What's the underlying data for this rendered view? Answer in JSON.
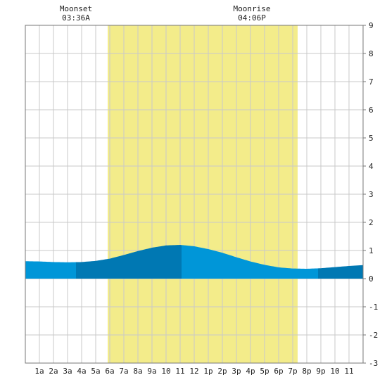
{
  "chart_data": {
    "type": "area",
    "title": "",
    "xlabel": "",
    "ylabel": "",
    "ylim": [
      -3,
      9
    ],
    "x_range_hours": [
      0,
      24
    ],
    "y_ticks": [
      -3,
      -2,
      -1,
      0,
      1,
      2,
      3,
      4,
      5,
      6,
      7,
      8,
      9
    ],
    "x_tick_labels": [
      "1a",
      "2a",
      "3a",
      "4a",
      "5a",
      "6a",
      "7a",
      "8a",
      "9a",
      "10",
      "11",
      "12",
      "1p",
      "2p",
      "3p",
      "4p",
      "5p",
      "6p",
      "7p",
      "8p",
      "9p",
      "10",
      "11"
    ],
    "daylight": {
      "start_hour": 5.85,
      "end_hour": 19.35
    },
    "moon_events": [
      {
        "label": "Moonset",
        "time": "03:36A",
        "hour": 3.6
      },
      {
        "label": "Moonrise",
        "time": "04:06P",
        "hour": 16.1
      }
    ],
    "tide_level_ft": [
      {
        "x": 0,
        "y": 0.62
      },
      {
        "x": 1,
        "y": 0.61
      },
      {
        "x": 2,
        "y": 0.59
      },
      {
        "x": 3,
        "y": 0.58
      },
      {
        "x": 4,
        "y": 0.59
      },
      {
        "x": 5,
        "y": 0.63
      },
      {
        "x": 6,
        "y": 0.71
      },
      {
        "x": 7,
        "y": 0.84
      },
      {
        "x": 8,
        "y": 0.98
      },
      {
        "x": 9,
        "y": 1.1
      },
      {
        "x": 10,
        "y": 1.18
      },
      {
        "x": 11,
        "y": 1.2
      },
      {
        "x": 12,
        "y": 1.15
      },
      {
        "x": 13,
        "y": 1.05
      },
      {
        "x": 14,
        "y": 0.92
      },
      {
        "x": 15,
        "y": 0.76
      },
      {
        "x": 16,
        "y": 0.61
      },
      {
        "x": 17,
        "y": 0.49
      },
      {
        "x": 18,
        "y": 0.4
      },
      {
        "x": 19,
        "y": 0.36
      },
      {
        "x": 20,
        "y": 0.35
      },
      {
        "x": 21,
        "y": 0.37
      },
      {
        "x": 22,
        "y": 0.41
      },
      {
        "x": 23,
        "y": 0.45
      },
      {
        "x": 24,
        "y": 0.48
      }
    ],
    "tide_bands": [
      {
        "start_hour": 0,
        "end_hour": 3.6,
        "shade": "light"
      },
      {
        "start_hour": 3.6,
        "end_hour": 11.1,
        "shade": "dark"
      },
      {
        "start_hour": 11.1,
        "end_hour": 20.8,
        "shade": "light"
      },
      {
        "start_hour": 20.8,
        "end_hour": 24,
        "shade": "dark"
      }
    ],
    "colors": {
      "daylight": "#f3ec8a",
      "tide_light": "#0096d8",
      "tide_dark": "#0078b3",
      "grid": "#c9c9c9",
      "frame": "#777777",
      "text": "#222222"
    }
  }
}
